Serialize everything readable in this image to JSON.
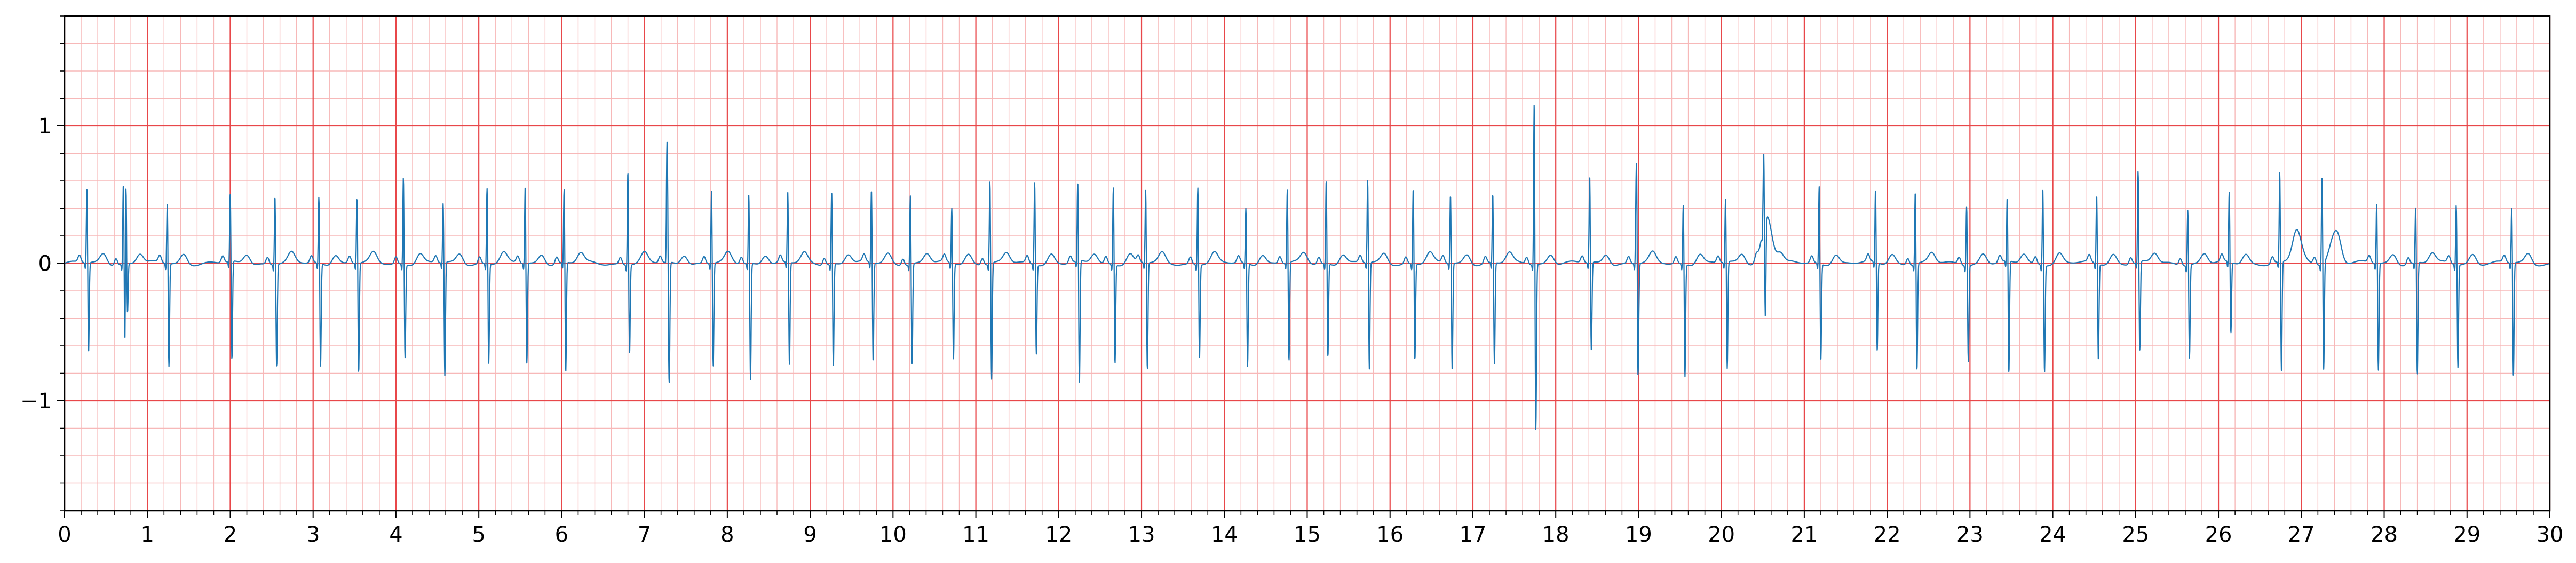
{
  "chart_data": {
    "type": "line",
    "title": "",
    "xlabel": "",
    "ylabel": "",
    "xlim": [
      0,
      30
    ],
    "ylim": [
      -1.8,
      1.8
    ],
    "x_ticks": [
      0,
      1,
      2,
      3,
      4,
      5,
      6,
      7,
      8,
      9,
      10,
      11,
      12,
      13,
      14,
      15,
      16,
      17,
      18,
      19,
      20,
      21,
      22,
      23,
      24,
      25,
      26,
      27,
      28,
      29,
      30
    ],
    "x_tick_labels": [
      "0",
      "1",
      "2",
      "3",
      "4",
      "5",
      "6",
      "7",
      "8",
      "9",
      "10",
      "11",
      "12",
      "13",
      "14",
      "15",
      "16",
      "17",
      "18",
      "19",
      "20",
      "21",
      "22",
      "23",
      "24",
      "25",
      "26",
      "27",
      "28",
      "29",
      "30"
    ],
    "y_ticks": [
      -1,
      0,
      1
    ],
    "y_tick_labels": [
      "−1",
      "0",
      "1"
    ],
    "grid": {
      "major": true,
      "major_x_step": 1,
      "major_y_step": 1,
      "major_color": "#e8474a",
      "minor": true,
      "minor_x_step": 0.2,
      "minor_y_step": 0.2,
      "minor_color": "#f7b8b8"
    },
    "legend": "none",
    "series": [
      {
        "color": "#1f77b4",
        "beat_times": [
          0.27,
          0.71,
          1.24,
          2.0,
          2.54,
          3.07,
          3.53,
          4.09,
          4.57,
          5.1,
          5.56,
          6.03,
          6.8,
          7.28,
          7.81,
          8.26,
          8.73,
          9.26,
          9.74,
          10.21,
          10.71,
          11.17,
          11.71,
          12.23,
          12.66,
          13.05,
          13.68,
          14.26,
          14.76,
          15.23,
          15.73,
          16.28,
          16.73,
          17.24,
          17.74,
          18.41,
          18.97,
          19.54,
          20.05,
          20.51,
          21.18,
          21.86,
          22.34,
          22.96,
          23.45,
          23.88,
          24.53,
          25.03,
          25.63,
          26.13,
          26.74,
          27.25,
          27.91,
          28.38,
          28.87,
          29.54
        ],
        "r_peaks": [
          0.55,
          0.6,
          0.45,
          0.52,
          0.52,
          0.5,
          0.5,
          0.65,
          0.45,
          0.57,
          0.57,
          0.55,
          0.7,
          0.5,
          0.55,
          0.52,
          0.53,
          0.55,
          0.55,
          0.52,
          0.42,
          0.62,
          0.62,
          0.6,
          0.58,
          0.55,
          0.58,
          0.42,
          0.55,
          0.63,
          0.62,
          0.57,
          0.52,
          0.52,
          0.52,
          0.65,
          0.5,
          0.45,
          0.48,
          0.55,
          0.58,
          0.55,
          0.55,
          0.45,
          0.48,
          0.57,
          0.52,
          0.68,
          0.42,
          0.52,
          0.67,
          0.65,
          0.45,
          0.42,
          0.45,
          0.43
        ],
        "s_troughs": [
          -0.65,
          -0.7,
          -0.75,
          -0.72,
          -0.75,
          -0.75,
          -0.8,
          -0.68,
          -0.83,
          -0.73,
          -0.73,
          -0.8,
          -0.65,
          -0.75,
          -0.75,
          -0.85,
          -0.75,
          -0.75,
          -0.72,
          -0.73,
          -0.7,
          -0.85,
          -0.65,
          -0.9,
          -0.72,
          -0.78,
          -0.68,
          -0.75,
          -0.72,
          -0.68,
          -0.78,
          -0.7,
          -0.78,
          -0.75,
          -0.9,
          -0.65,
          -0.75,
          -0.82,
          -0.78,
          -0.72,
          -0.7,
          -0.65,
          -0.78,
          -0.7,
          -0.82,
          -0.78,
          -0.7,
          -0.65,
          -0.68,
          -0.52,
          -0.8,
          -0.78,
          -0.78,
          -0.82,
          -0.75,
          -0.83
        ],
        "extra_spikes": [
          {
            "x": 0.74,
            "y": 0.8
          },
          {
            "x": 5.48,
            "y": 0.0
          },
          {
            "x": 7.27,
            "y": 0.7
          },
          {
            "x": 17.74,
            "y": 0.68
          },
          {
            "x": 18.98,
            "y": 0.65
          }
        ],
        "t_wave_bumps": [
          {
            "x": 20.55,
            "y": 0.35
          },
          {
            "x": 26.95,
            "y": 0.17
          },
          {
            "x": 27.4,
            "y": 0.2
          }
        ]
      }
    ]
  }
}
